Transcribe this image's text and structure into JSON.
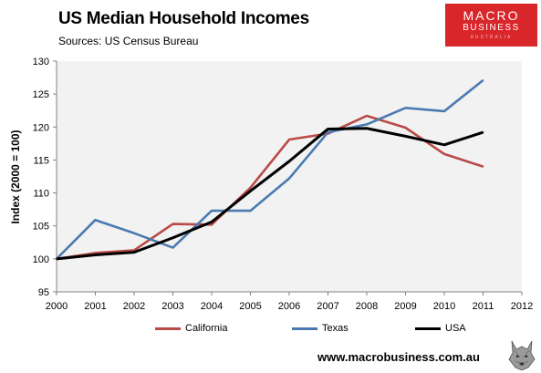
{
  "title": "US Median Household Incomes",
  "subtitle": "Sources: US Census Bureau",
  "logo": {
    "line1": "MACRO",
    "line2": "BUSINESS",
    "line3": "AUSTRALIA",
    "color": "#d9262b"
  },
  "footer": {
    "url": "www.macrobusiness.com.au",
    "icon": "wolf-icon"
  },
  "chart_data": {
    "type": "line",
    "title": "US Median Household Incomes",
    "subtitle": "Sources: US Census Bureau",
    "xlabel": "",
    "ylabel": "Index (2000 = 100)",
    "x": [
      2000,
      2001,
      2002,
      2003,
      2004,
      2005,
      2006,
      2007,
      2008,
      2009,
      2010,
      2011
    ],
    "xticks": [
      "2000",
      "2001",
      "2002",
      "2003",
      "2004",
      "2005",
      "2006",
      "2007",
      "2008",
      "2009",
      "2010",
      "2011",
      "2012"
    ],
    "xlim": [
      2000,
      2012
    ],
    "yticks": [
      "95",
      "100",
      "105",
      "110",
      "115",
      "120",
      "125",
      "130"
    ],
    "ylim": [
      95,
      130
    ],
    "grid": false,
    "legend": "bottom",
    "series": [
      {
        "name": "California",
        "color": "#b94a48",
        "values": [
          100,
          100.9,
          101.3,
          105.3,
          105.2,
          110.8,
          118.1,
          119.0,
          121.7,
          119.9,
          115.9,
          114.0
        ]
      },
      {
        "name": "Texas",
        "color": "#4a7ab0",
        "values": [
          100,
          105.9,
          103.9,
          101.7,
          107.3,
          107.3,
          112.2,
          119.2,
          120.4,
          122.9,
          122.4,
          127.1
        ]
      },
      {
        "name": "USA",
        "color": "#000000",
        "values": [
          100,
          100.6,
          101.0,
          103.2,
          105.6,
          110.3,
          114.8,
          119.7,
          119.8,
          118.6,
          117.3,
          119.2
        ]
      }
    ]
  }
}
